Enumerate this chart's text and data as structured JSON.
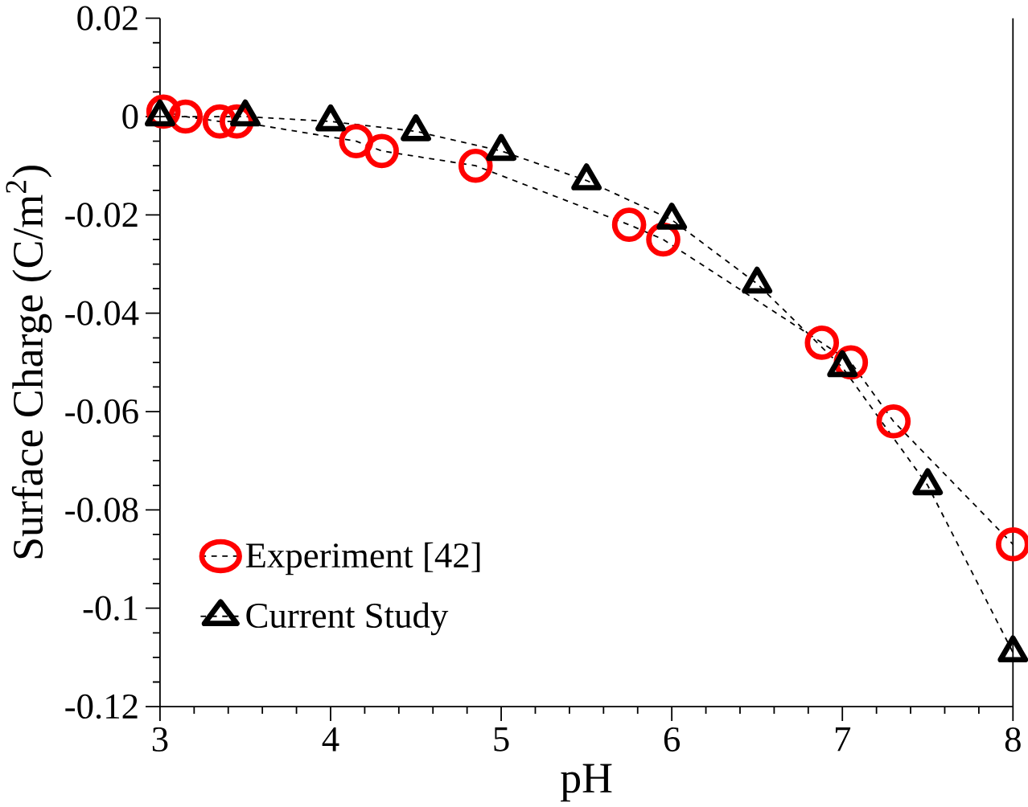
{
  "chart_data": {
    "type": "line",
    "xlabel": "pH",
    "ylabel": "Surface Charge (C/m$^{2}$)",
    "xlim": [
      3,
      8
    ],
    "xticks": [
      3,
      4,
      5,
      6,
      7,
      8
    ],
    "ylim": [
      -0.12,
      0.02
    ],
    "yticks": [
      -0.12,
      -0.1,
      -0.08,
      -0.06,
      -0.04,
      -0.02,
      0,
      0.02
    ],
    "legend": "bottom left",
    "grid": false,
    "line_style": "dashed",
    "series": [
      {
        "name": "Experiment  [42]",
        "color": "#ff0000",
        "marker": "circle",
        "x": [
          3.02,
          3.15,
          3.35,
          3.45,
          4.15,
          4.3,
          4.85,
          5.75,
          5.95,
          6.88,
          7.05,
          7.3,
          8.0
        ],
        "values": [
          0.001,
          0.0,
          -0.001,
          -0.001,
          -0.005,
          -0.007,
          -0.01,
          -0.022,
          -0.025,
          -0.046,
          -0.05,
          -0.062,
          -0.087
        ]
      },
      {
        "name": "Current  Study",
        "color": "#000000",
        "marker": "triangle",
        "x": [
          3,
          3.5,
          4,
          4.5,
          5,
          5.5,
          6,
          6.5,
          7,
          7.5,
          8
        ],
        "values": [
          0.0,
          0.0,
          -0.001,
          -0.003,
          -0.007,
          -0.013,
          -0.021,
          -0.034,
          -0.051,
          -0.075,
          -0.109
        ]
      }
    ]
  }
}
